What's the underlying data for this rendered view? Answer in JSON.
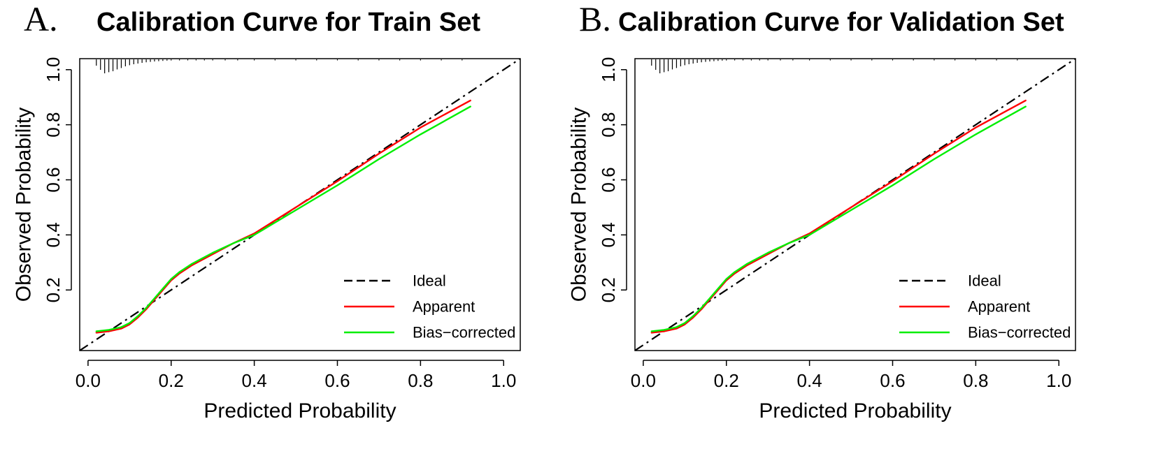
{
  "chart_data": [
    {
      "type": "line",
      "panel_letter": "A.",
      "title": "Calibration Curve for Train Set",
      "xlabel": "Predicted Probability",
      "ylabel": "Observed Probability",
      "xlim": [
        -0.02,
        1.04
      ],
      "ylim": [
        -0.02,
        1.04
      ],
      "x_ticks": [
        "0.0",
        "0.2",
        "0.4",
        "0.6",
        "0.8",
        "1.0"
      ],
      "y_ticks": [
        "0.2",
        "0.4",
        "0.6",
        "0.8",
        "1.0"
      ],
      "legend": [
        "Ideal",
        "Apparent",
        "Bias−corrected"
      ],
      "legend_position": "bottom-right",
      "series": [
        {
          "name": "Ideal",
          "style": "dashed",
          "color": "#000000",
          "x": [
            -0.02,
            1.04
          ],
          "y": [
            -0.02,
            1.04
          ]
        },
        {
          "name": "Apparent",
          "style": "solid",
          "color": "#ff0000",
          "x": [
            0.02,
            0.05,
            0.08,
            0.1,
            0.12,
            0.14,
            0.16,
            0.18,
            0.2,
            0.22,
            0.25,
            0.3,
            0.35,
            0.4,
            0.5,
            0.6,
            0.7,
            0.8,
            0.92
          ],
          "y": [
            0.045,
            0.05,
            0.06,
            0.075,
            0.1,
            0.13,
            0.165,
            0.2,
            0.235,
            0.26,
            0.29,
            0.33,
            0.37,
            0.405,
            0.5,
            0.595,
            0.695,
            0.79,
            0.888
          ]
        },
        {
          "name": "Bias−corrected",
          "style": "solid",
          "color": "#00ee00",
          "x": [
            0.02,
            0.05,
            0.08,
            0.1,
            0.12,
            0.14,
            0.16,
            0.18,
            0.2,
            0.22,
            0.25,
            0.3,
            0.35,
            0.4,
            0.5,
            0.6,
            0.7,
            0.8,
            0.92
          ],
          "y": [
            0.05,
            0.055,
            0.065,
            0.08,
            0.105,
            0.135,
            0.17,
            0.205,
            0.24,
            0.265,
            0.295,
            0.335,
            0.37,
            0.4,
            0.49,
            0.58,
            0.675,
            0.765,
            0.866
          ]
        }
      ],
      "rug": {
        "x": [
          0.02,
          0.03,
          0.04,
          0.05,
          0.06,
          0.07,
          0.08,
          0.09,
          0.1,
          0.11,
          0.12,
          0.13,
          0.14,
          0.15,
          0.16,
          0.17,
          0.18,
          0.19,
          0.2,
          0.22,
          0.24,
          0.26,
          0.28,
          0.3,
          0.33,
          0.36,
          0.4,
          0.45,
          0.5,
          0.55,
          0.6,
          0.65,
          0.7,
          0.75,
          0.8,
          0.85,
          0.9
        ],
        "counts": [
          0.45,
          0.75,
          1.0,
          0.92,
          0.85,
          0.72,
          0.62,
          0.5,
          0.42,
          0.35,
          0.3,
          0.25,
          0.21,
          0.18,
          0.15,
          0.13,
          0.11,
          0.09,
          0.08,
          0.07,
          0.06,
          0.05,
          0.045,
          0.04,
          0.035,
          0.03,
          0.03,
          0.025,
          0.025,
          0.02,
          0.02,
          0.02,
          0.02,
          0.015,
          0.015,
          0.015,
          0.015
        ]
      }
    },
    {
      "type": "line",
      "panel_letter": "B.",
      "title": "Calibration Curve for Validation Set",
      "xlabel": "Predicted Probability",
      "ylabel": "Observed Probability",
      "xlim": [
        -0.02,
        1.04
      ],
      "ylim": [
        -0.02,
        1.04
      ],
      "x_ticks": [
        "0.0",
        "0.2",
        "0.4",
        "0.6",
        "0.8",
        "1.0"
      ],
      "y_ticks": [
        "0.2",
        "0.4",
        "0.6",
        "0.8",
        "1.0"
      ],
      "legend": [
        "Ideal",
        "Apparent",
        "Bias−corrected"
      ],
      "legend_position": "bottom-right",
      "series": [
        {
          "name": "Ideal",
          "style": "dashed",
          "color": "#000000",
          "x": [
            -0.02,
            1.04
          ],
          "y": [
            -0.02,
            1.04
          ]
        },
        {
          "name": "Apparent",
          "style": "solid",
          "color": "#ff0000",
          "x": [
            0.02,
            0.05,
            0.08,
            0.1,
            0.12,
            0.14,
            0.16,
            0.18,
            0.2,
            0.22,
            0.25,
            0.3,
            0.35,
            0.4,
            0.5,
            0.6,
            0.7,
            0.8,
            0.92
          ],
          "y": [
            0.045,
            0.05,
            0.06,
            0.075,
            0.1,
            0.13,
            0.165,
            0.2,
            0.235,
            0.26,
            0.29,
            0.33,
            0.37,
            0.405,
            0.5,
            0.595,
            0.695,
            0.79,
            0.888
          ]
        },
        {
          "name": "Bias−corrected",
          "style": "solid",
          "color": "#00ee00",
          "x": [
            0.02,
            0.05,
            0.08,
            0.1,
            0.12,
            0.14,
            0.16,
            0.18,
            0.2,
            0.22,
            0.25,
            0.3,
            0.35,
            0.4,
            0.5,
            0.6,
            0.7,
            0.8,
            0.92
          ],
          "y": [
            0.05,
            0.055,
            0.065,
            0.08,
            0.105,
            0.135,
            0.17,
            0.205,
            0.24,
            0.265,
            0.295,
            0.335,
            0.37,
            0.4,
            0.49,
            0.58,
            0.675,
            0.765,
            0.866
          ]
        }
      ],
      "rug": {
        "x": [
          0.02,
          0.03,
          0.04,
          0.05,
          0.06,
          0.07,
          0.08,
          0.09,
          0.1,
          0.11,
          0.12,
          0.13,
          0.14,
          0.15,
          0.16,
          0.17,
          0.18,
          0.19,
          0.2,
          0.22,
          0.24,
          0.26,
          0.28,
          0.3,
          0.33,
          0.36,
          0.4,
          0.45,
          0.5,
          0.55,
          0.6,
          0.65,
          0.7,
          0.75,
          0.8,
          0.85,
          0.9
        ],
        "counts": [
          0.45,
          0.75,
          1.0,
          0.92,
          0.85,
          0.72,
          0.62,
          0.5,
          0.42,
          0.35,
          0.3,
          0.25,
          0.21,
          0.18,
          0.15,
          0.13,
          0.11,
          0.09,
          0.08,
          0.07,
          0.06,
          0.05,
          0.045,
          0.04,
          0.035,
          0.03,
          0.03,
          0.025,
          0.025,
          0.02,
          0.02,
          0.02,
          0.02,
          0.015,
          0.015,
          0.015,
          0.015
        ]
      }
    }
  ]
}
